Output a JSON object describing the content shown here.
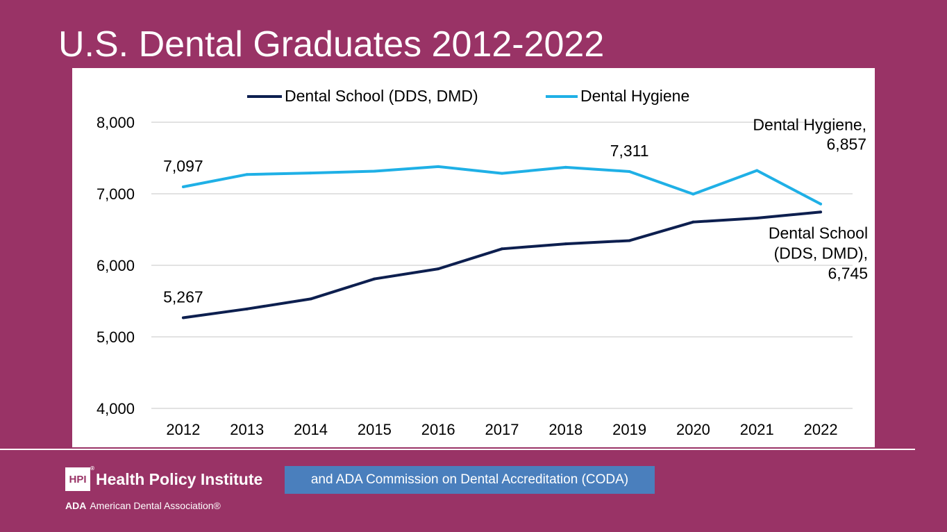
{
  "slide": {
    "title": "U.S. Dental Graduates 2012-2022"
  },
  "chart_data": {
    "type": "line",
    "title": "",
    "xlabel": "",
    "ylabel": "",
    "ylim": [
      4000,
      8000
    ],
    "yticks": [
      "4,000",
      "5,000",
      "6,000",
      "7,000",
      "8,000"
    ],
    "ytick_values": [
      4000,
      5000,
      6000,
      7000,
      8000
    ],
    "categories": [
      "2012",
      "2013",
      "2014",
      "2015",
      "2016",
      "2017",
      "2018",
      "2019",
      "2020",
      "2021",
      "2022"
    ],
    "grid": true,
    "legend_position": "top",
    "series": [
      {
        "name": "Dental School (DDS, DMD)",
        "color": "#0d1f4f",
        "values": [
          5267,
          5390,
          5530,
          5810,
          5950,
          6230,
          6300,
          6345,
          6605,
          6660,
          6745
        ]
      },
      {
        "name": "Dental Hygiene",
        "color": "#1fb0e6",
        "values": [
          7097,
          7270,
          7290,
          7315,
          7380,
          7285,
          7370,
          7311,
          6995,
          7325,
          6857
        ]
      }
    ],
    "annotations": [
      {
        "series": 1,
        "index": 0,
        "lines": [
          "7,097"
        ]
      },
      {
        "series": 1,
        "index": 7,
        "lines": [
          "7,311"
        ]
      },
      {
        "series": 1,
        "index": 10,
        "lines": [
          "Dental Hygiene,",
          "6,857"
        ]
      },
      {
        "series": 0,
        "index": 0,
        "lines": [
          "5,267"
        ]
      },
      {
        "series": 0,
        "index": 10,
        "lines": [
          "Dental School",
          "(DDS, DMD),",
          "6,745"
        ]
      }
    ]
  },
  "footer": {
    "logo_abbr": "HPI",
    "logo_reg": "®",
    "logo_name": "Health Policy Institute",
    "ada_abbr": "ADA",
    "ada_name": "American Dental Association®",
    "source": "and ADA Commission on Dental Accreditation (CODA)"
  }
}
